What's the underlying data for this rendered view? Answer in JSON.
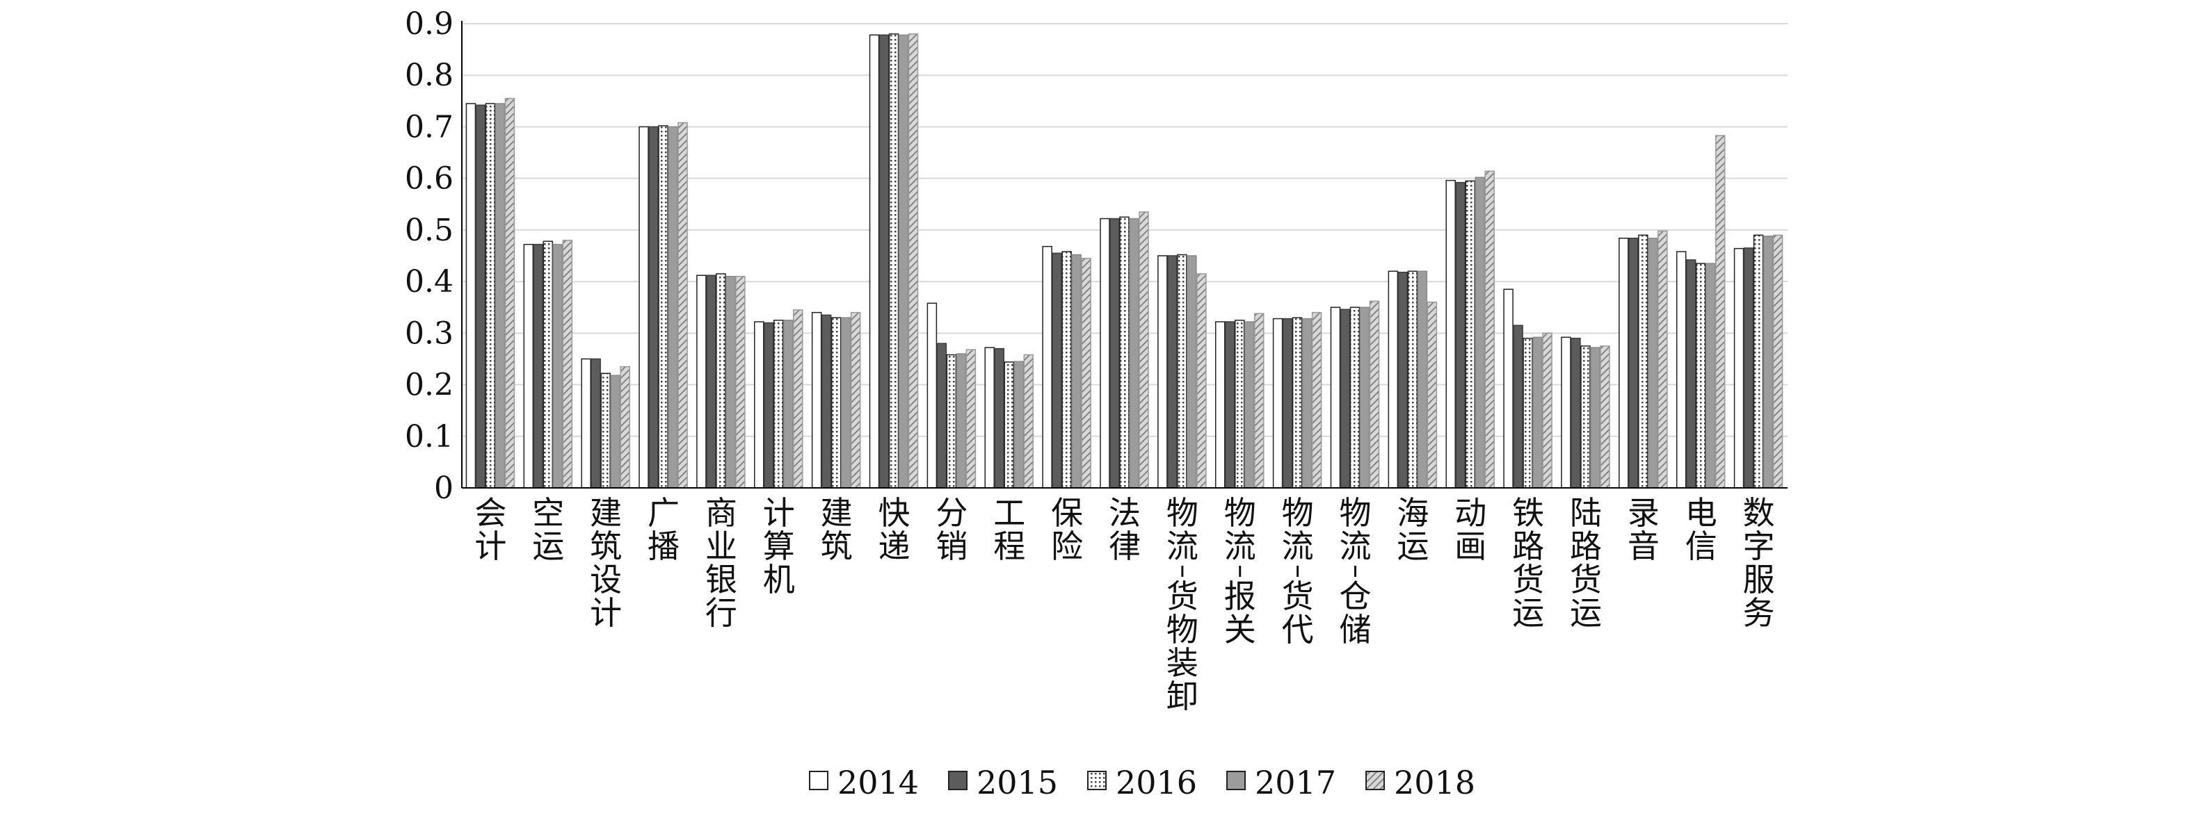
{
  "chart_data": {
    "type": "bar",
    "categories": [
      "会计",
      "空运",
      "建筑设计",
      "广播",
      "商业银行",
      "计算机",
      "建筑",
      "快递",
      "分销",
      "工程",
      "保险",
      "法律",
      "物流-货物装卸",
      "物流-报关",
      "物流-货代",
      "物流-仓储",
      "海运",
      "动画",
      "铁路货运",
      "陆路货运",
      "录音",
      "电信",
      "数字服务"
    ],
    "series": [
      {
        "name": "2014",
        "values": [
          0.745,
          0.472,
          0.25,
          0.7,
          0.412,
          0.322,
          0.34,
          0.878,
          0.358,
          0.272,
          0.468,
          0.522,
          0.45,
          0.322,
          0.328,
          0.35,
          0.42,
          0.596,
          0.385,
          0.292,
          0.484,
          0.458,
          0.464
        ]
      },
      {
        "name": "2015",
        "values": [
          0.742,
          0.472,
          0.25,
          0.7,
          0.412,
          0.32,
          0.335,
          0.878,
          0.28,
          0.27,
          0.455,
          0.522,
          0.45,
          0.322,
          0.328,
          0.346,
          0.418,
          0.592,
          0.315,
          0.29,
          0.484,
          0.442,
          0.465
        ]
      },
      {
        "name": "2016",
        "values": [
          0.745,
          0.478,
          0.222,
          0.702,
          0.415,
          0.325,
          0.33,
          0.88,
          0.258,
          0.244,
          0.458,
          0.525,
          0.452,
          0.325,
          0.33,
          0.35,
          0.42,
          0.595,
          0.29,
          0.275,
          0.49,
          0.435,
          0.49
        ]
      },
      {
        "name": "2017",
        "values": [
          0.745,
          0.472,
          0.218,
          0.7,
          0.41,
          0.325,
          0.33,
          0.878,
          0.26,
          0.245,
          0.452,
          0.522,
          0.45,
          0.322,
          0.328,
          0.35,
          0.42,
          0.602,
          0.292,
          0.272,
          0.484,
          0.435,
          0.488
        ]
      },
      {
        "name": "2018",
        "values": [
          0.755,
          0.48,
          0.235,
          0.708,
          0.41,
          0.345,
          0.34,
          0.88,
          0.268,
          0.258,
          0.445,
          0.535,
          0.415,
          0.338,
          0.34,
          0.362,
          0.36,
          0.614,
          0.3,
          0.275,
          0.498,
          0.683,
          0.49
        ]
      }
    ],
    "yticks": [
      "0",
      "0.1",
      "0.2",
      "0.3",
      "0.4",
      "0.5",
      "0.6",
      "0.7",
      "0.8",
      "0.9"
    ],
    "ylim": [
      0,
      0.9
    ],
    "grid": true,
    "legend_position": "bottom",
    "title": "",
    "xlabel": "",
    "ylabel": ""
  }
}
